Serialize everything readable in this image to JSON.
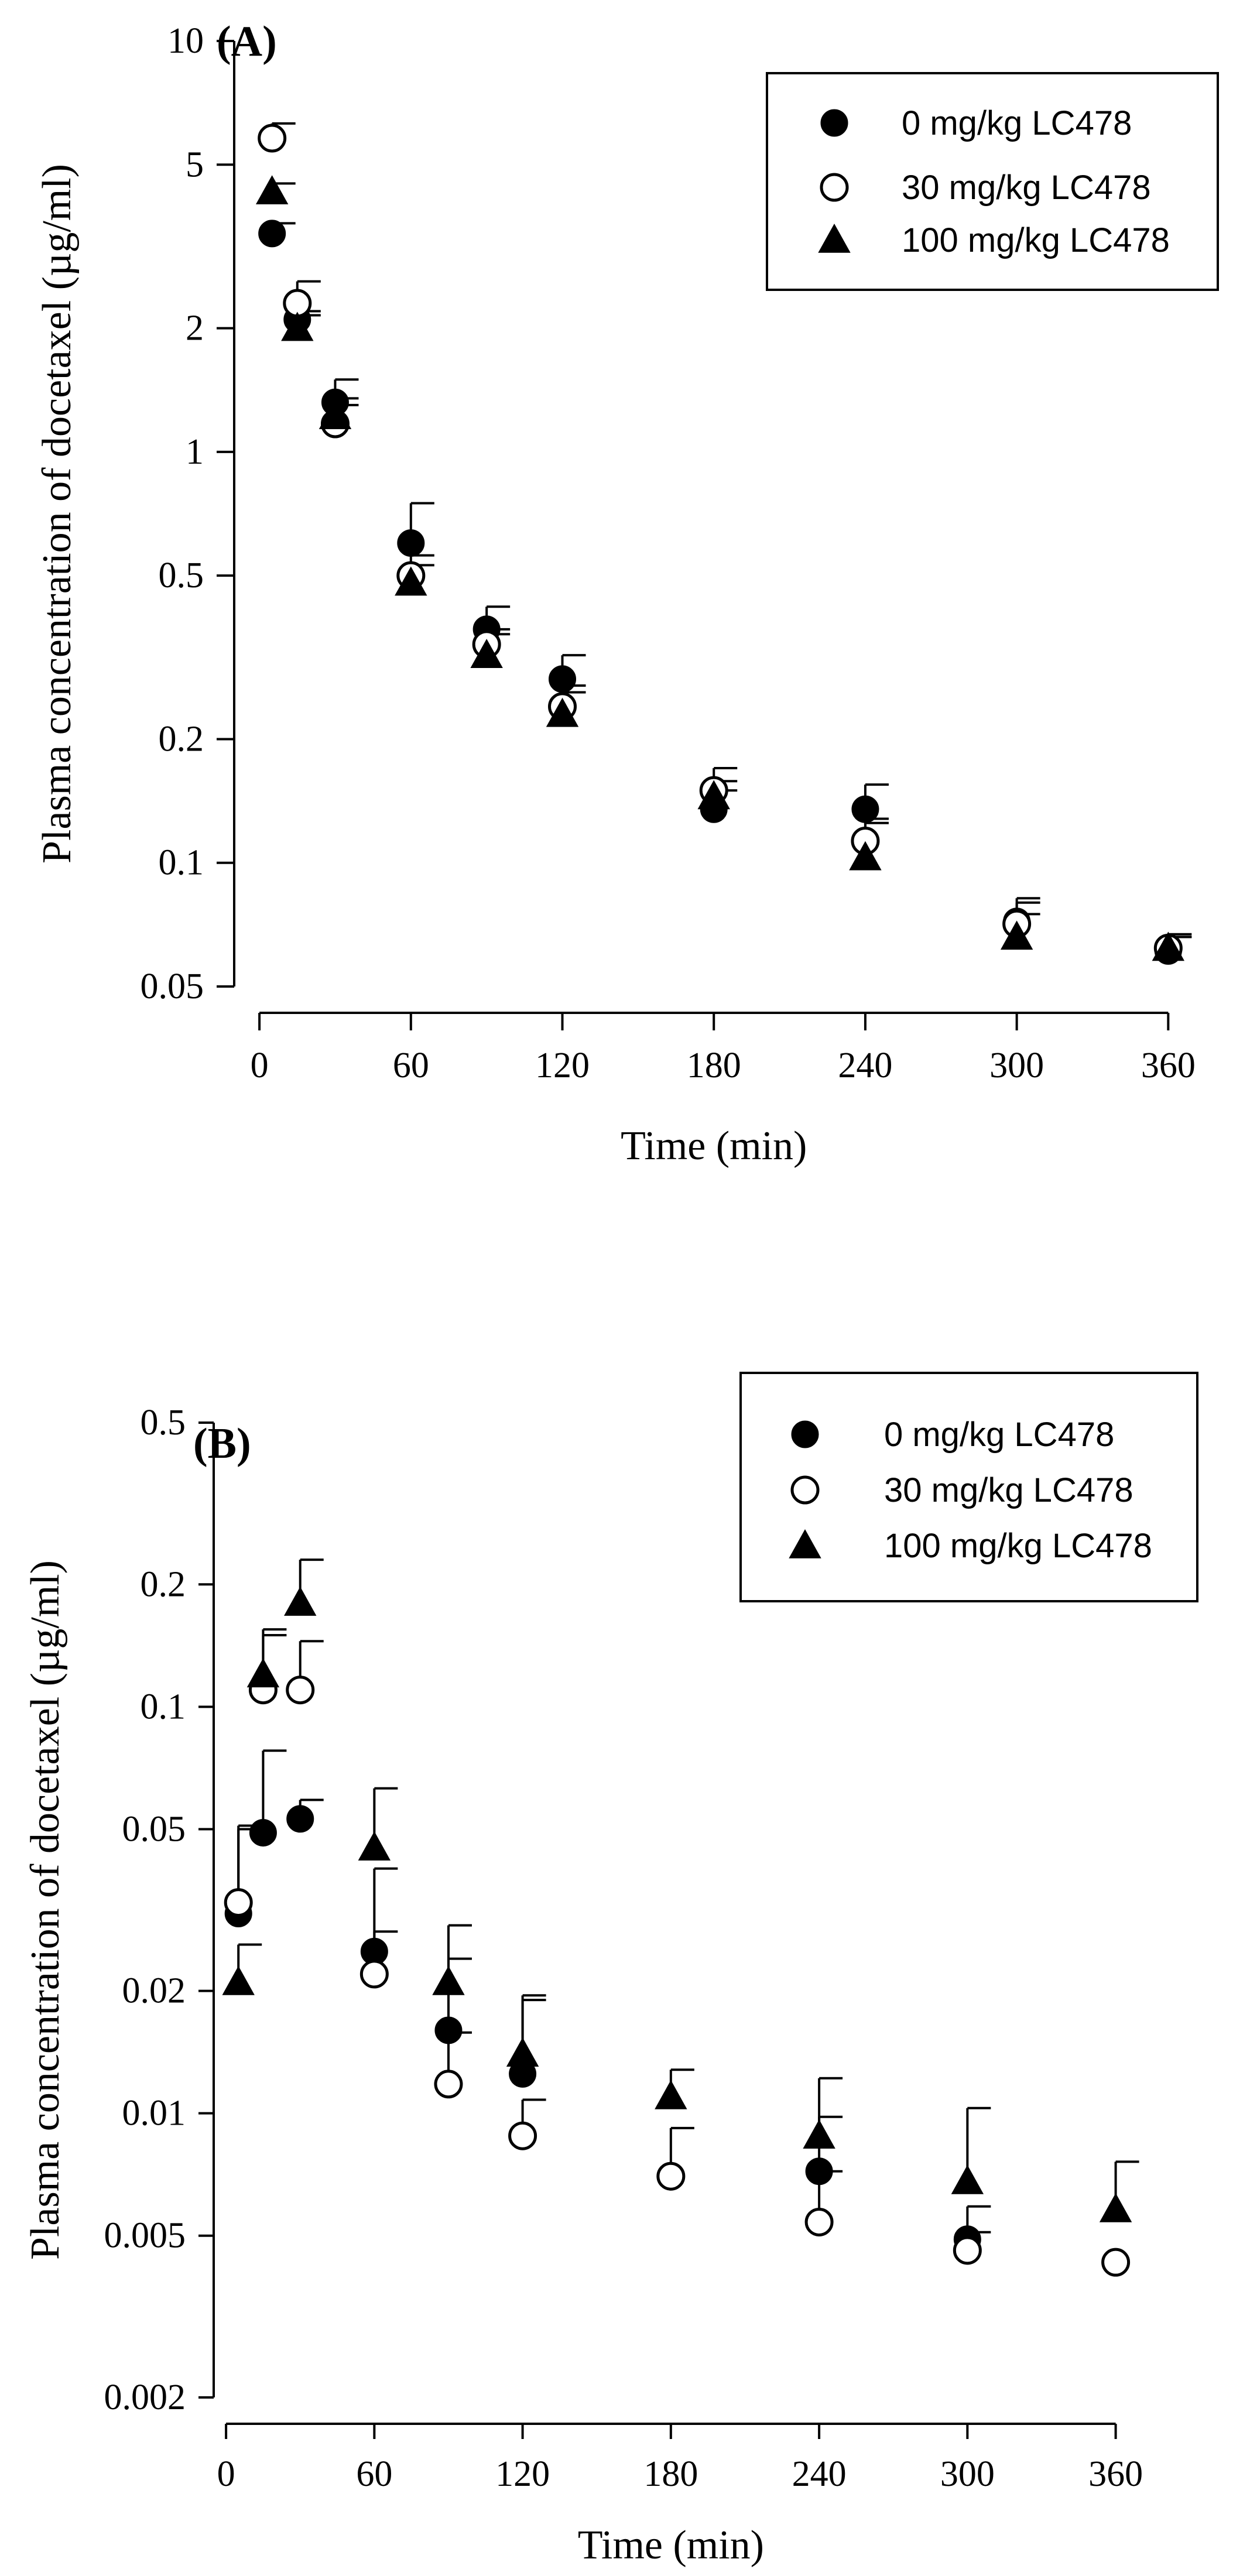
{
  "chart_data": [
    {
      "type": "scatter",
      "panel_label": "(A)",
      "xlabel": "Time (min)",
      "ylabel": "Plasma concentration of docetaxel (µg/ml)",
      "yscale": "log",
      "xlim": [
        -10,
        375
      ],
      "ylim": [
        0.05,
        10
      ],
      "xticks": [
        0,
        60,
        120,
        180,
        240,
        300,
        360
      ],
      "xtick_labels": [
        "0",
        "60",
        "120",
        "180",
        "240",
        "300",
        "360"
      ],
      "yticks": [
        0.05,
        0.1,
        0.2,
        0.5,
        1,
        2,
        5,
        10
      ],
      "ytick_labels": [
        "0.05",
        "0.1",
        "0.2",
        "0.5",
        "1",
        "2",
        "5",
        "10"
      ],
      "grid": false,
      "legend_position": "top-right",
      "series": [
        {
          "name": "0 mg/kg LC478",
          "marker": "filled-circle",
          "x": [
            5,
            15,
            30,
            60,
            90,
            120,
            180,
            240,
            300,
            360
          ],
          "y": [
            3.4,
            2.1,
            1.32,
            0.6,
            0.37,
            0.28,
            0.135,
            0.135,
            0.072,
            0.061
          ],
          "err_upper": [
            3.6,
            2.2,
            1.5,
            0.75,
            0.42,
            0.32,
            0.15,
            0.155,
            0.08,
            0.067
          ]
        },
        {
          "name": "30 mg/kg LC478",
          "marker": "open-circle",
          "x": [
            5,
            15,
            30,
            60,
            90,
            120,
            180,
            240,
            300,
            360
          ],
          "y": [
            5.8,
            2.3,
            1.17,
            0.5,
            0.34,
            0.24,
            0.15,
            0.113,
            0.071,
            0.062
          ],
          "err_upper": [
            6.3,
            2.6,
            1.3,
            0.56,
            0.37,
            0.27,
            0.17,
            0.125,
            0.082,
            0.066
          ]
        },
        {
          "name": "100 mg/kg LC478",
          "marker": "filled-triangle",
          "x": [
            5,
            15,
            30,
            60,
            90,
            120,
            180,
            240,
            300,
            360
          ],
          "y": [
            4.3,
            2.0,
            1.22,
            0.48,
            0.32,
            0.23,
            0.145,
            0.103,
            0.066,
            0.062
          ],
          "err_upper": [
            4.5,
            2.15,
            1.35,
            0.53,
            0.36,
            0.26,
            0.158,
            0.128,
            0.075,
            0.066
          ]
        }
      ]
    },
    {
      "type": "scatter",
      "panel_label": "(B)",
      "xlabel": "Time (min)",
      "ylabel": "Plasma concentration of docetaxel (µg/ml)",
      "yscale": "log",
      "xlim": [
        -5,
        380
      ],
      "ylim": [
        0.002,
        0.5
      ],
      "xticks": [
        0,
        60,
        120,
        180,
        240,
        300,
        360
      ],
      "xtick_labels": [
        "0",
        "60",
        "120",
        "180",
        "240",
        "300",
        "360"
      ],
      "yticks": [
        0.002,
        0.005,
        0.01,
        0.02,
        0.05,
        0.1,
        0.2,
        0.5
      ],
      "ytick_labels": [
        "0.002",
        "0.005",
        "0.01",
        "0.02",
        "0.05",
        "0.1",
        "0.2",
        "0.5"
      ],
      "grid": false,
      "legend_position": "top-right",
      "series": [
        {
          "name": "0 mg/kg LC478",
          "marker": "filled-circle",
          "x": [
            5,
            15,
            30,
            60,
            90,
            120,
            180,
            240,
            300,
            360
          ],
          "y": [
            0.031,
            0.049,
            0.053,
            0.025,
            0.016,
            0.0125,
            null,
            0.0072,
            0.0049,
            null
          ],
          "err_upper": [
            0.05,
            0.078,
            0.059,
            0.04,
            0.024,
            0.019,
            null,
            0.0098,
            0.0059,
            null
          ]
        },
        {
          "name": "30 mg/kg LC478",
          "marker": "open-circle",
          "x": [
            5,
            15,
            30,
            60,
            90,
            120,
            180,
            240,
            300,
            360
          ],
          "y": [
            0.033,
            0.11,
            0.11,
            0.022,
            0.0118,
            0.0088,
            0.007,
            0.0054,
            0.0046,
            0.0043
          ],
          "err_upper": [
            0.051,
            0.15,
            0.145,
            0.028,
            0.0158,
            0.0108,
            0.0092,
            0.0072,
            0.0051,
            null
          ]
        },
        {
          "name": "100 mg/kg LC478",
          "marker": "filled-triangle",
          "x": [
            5,
            15,
            30,
            60,
            90,
            120,
            180,
            240,
            300,
            360
          ],
          "y": [
            0.021,
            0.12,
            0.18,
            0.045,
            0.021,
            0.014,
            0.011,
            0.0088,
            0.0068,
            0.0058
          ],
          "err_upper": [
            0.026,
            0.155,
            0.23,
            0.063,
            0.029,
            0.0195,
            0.0128,
            0.0122,
            0.0103,
            0.0076
          ]
        }
      ]
    }
  ]
}
